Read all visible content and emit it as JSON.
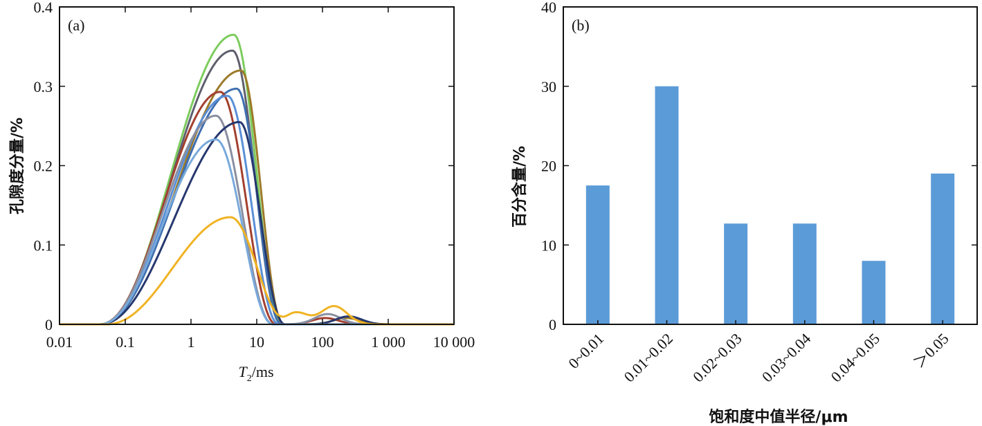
{
  "chart_data": [
    {
      "type": "line",
      "panel_label": "(a)",
      "xlabel_main": "T",
      "xlabel_sub": "2",
      "xlabel_unit": "/ms",
      "ylabel": "孔隙度分量/%",
      "xscale": "log",
      "xlim": [
        0.01,
        10000
      ],
      "ylim": [
        0,
        0.4
      ],
      "xticks": [
        0.01,
        0.1,
        1,
        10,
        100,
        1000,
        10000
      ],
      "xtick_labels": [
        "0.01",
        "0.1",
        "1",
        "10",
        "100",
        "1 000",
        "10 000"
      ],
      "yticks": [
        0,
        0.1,
        0.2,
        0.3,
        0.4
      ],
      "ytick_labels": [
        "0",
        "0.1",
        "0.2",
        "0.3",
        "0.4"
      ],
      "grid": false,
      "series": [
        {
          "color": "#7dcc5d",
          "peak_x": 4.5,
          "peak_y": 0.365,
          "start_x": 0.04,
          "end_x": 25,
          "tail": []
        },
        {
          "color": "#5f5f6e",
          "peak_x": 4.3,
          "peak_y": 0.345,
          "start_x": 0.04,
          "end_x": 24,
          "tail": []
        },
        {
          "color": "#9c7a2a",
          "peak_x": 5.8,
          "peak_y": 0.32,
          "start_x": 0.04,
          "end_x": 26,
          "tail": [
            {
              "x": 230,
              "y": 0.008
            }
          ]
        },
        {
          "color": "#3f6fb0",
          "peak_x": 5.0,
          "peak_y": 0.297,
          "start_x": 0.04,
          "end_x": 24,
          "tail": []
        },
        {
          "color": "#a3402f",
          "peak_x": 2.8,
          "peak_y": 0.293,
          "start_x": 0.04,
          "end_x": 20,
          "tail": [
            {
              "x": 110,
              "y": 0.008
            }
          ]
        },
        {
          "color": "#5a8fd6",
          "peak_x": 3.6,
          "peak_y": 0.288,
          "start_x": 0.04,
          "end_x": 22,
          "tail": []
        },
        {
          "color": "#8a8fa0",
          "peak_x": 2.4,
          "peak_y": 0.263,
          "start_x": 0.04,
          "end_x": 18,
          "tail": [
            {
              "x": 120,
              "y": 0.013
            }
          ]
        },
        {
          "color": "#26386e",
          "peak_x": 5.5,
          "peak_y": 0.255,
          "start_x": 0.04,
          "end_x": 27,
          "tail": [
            {
              "x": 250,
              "y": 0.01
            }
          ]
        },
        {
          "color": "#78a9db",
          "peak_x": 2.4,
          "peak_y": 0.233,
          "start_x": 0.04,
          "end_x": 18,
          "tail": []
        },
        {
          "color": "#f0b323",
          "peak_x": 4.0,
          "peak_y": 0.135,
          "start_x": 0.05,
          "end_x": 900,
          "tail": [
            {
              "x": 150,
              "y": 0.023
            }
          ]
        }
      ]
    },
    {
      "type": "bar",
      "panel_label": "(b)",
      "xlabel": "饱和度中值半径/μm",
      "ylabel": "百分含量/%",
      "categories": [
        "0~0.01",
        "0.01~0.02",
        "0.02~0.03",
        "0.03~0.04",
        "0.04~0.05",
        "＞0.05"
      ],
      "values": [
        17.5,
        30.0,
        12.7,
        12.7,
        8.0,
        19.0
      ],
      "ylim": [
        0,
        40
      ],
      "yticks": [
        0,
        10,
        20,
        30,
        40
      ],
      "ytick_labels": [
        "0",
        "10",
        "20",
        "30",
        "40"
      ],
      "bar_color": "#5b9bd8",
      "grid": false
    }
  ]
}
